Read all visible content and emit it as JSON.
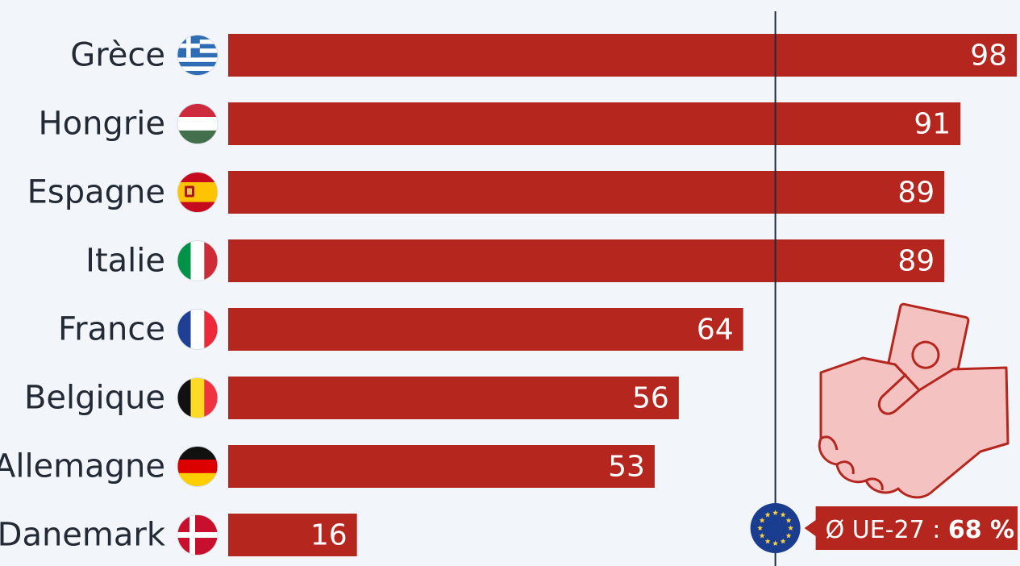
{
  "chart_data": {
    "type": "bar",
    "orientation": "horizontal",
    "categories": [
      "Grèce",
      "Hongrie",
      "Espagne",
      "Italie",
      "France",
      "Belgique",
      "Allemagne",
      "Danemark"
    ],
    "values": [
      98,
      91,
      89,
      89,
      64,
      56,
      53,
      16
    ],
    "flags": [
      "greece-flag-icon",
      "hungary-flag-icon",
      "spain-flag-icon",
      "italy-flag-icon",
      "france-flag-icon",
      "belgium-flag-icon",
      "germany-flag-icon",
      "denmark-flag-icon"
    ],
    "xlim": [
      0,
      98
    ],
    "reference_line": {
      "value": 68,
      "label_prefix": "Ø UE-27 : ",
      "label_value": "68 %"
    },
    "colors": {
      "bar": "#b5261e",
      "background": "#f2f5f9",
      "line": "#1f2b3a",
      "eu_blue": "#1a3d8f",
      "eu_star": "#f7d23e"
    }
  },
  "decoration": {
    "illustration": "handshake-money-icon",
    "badge": "eu-flag-icon"
  }
}
